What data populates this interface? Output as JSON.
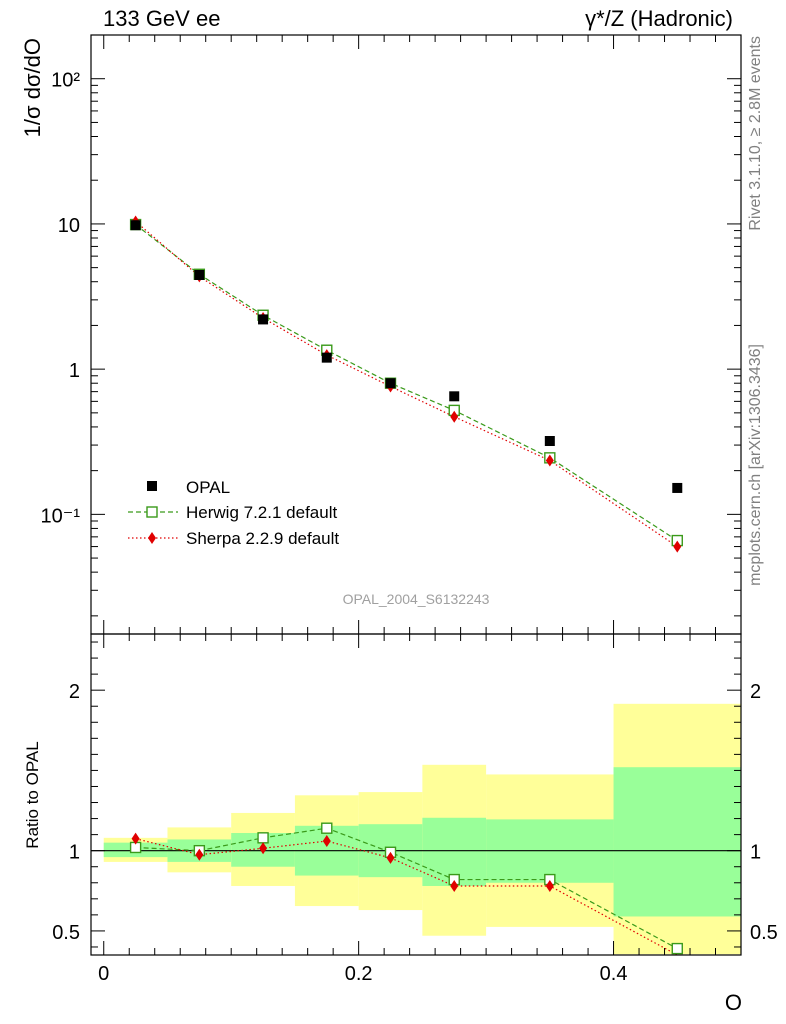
{
  "header": {
    "left": "133 GeV ee",
    "right": "γ*/Z (Hadronic)"
  },
  "side_labels": {
    "rivet": "Rivet 3.1.10, ≥ 2.8M events",
    "mcplots": "mcplots.cern.ch [arXiv:1306.3436]"
  },
  "analysis_id": "OPAL_2004_S6132243",
  "colors": {
    "data": "#000000",
    "herwig": "#3a9a1a",
    "sherpa": "#e00000",
    "band_outer": "#ffff99",
    "band_inner": "#99ff99"
  },
  "chart_data": [
    {
      "type": "scatter",
      "panel": "main",
      "ylabel": "1/σ dσ/dO",
      "yscale": "log",
      "ylim": [
        0.015,
        200
      ],
      "xlim": [
        -0.01,
        0.5
      ],
      "y_ticks": [
        "10⁻¹",
        "1",
        "10",
        "10²"
      ],
      "legend_position": "bottom-left",
      "x": [
        0.025,
        0.075,
        0.125,
        0.175,
        0.225,
        0.275,
        0.35,
        0.45
      ],
      "series": [
        {
          "name": "OPAL",
          "style": "markers",
          "marker": "filled-square",
          "values": [
            9.8,
            4.45,
            2.2,
            1.2,
            0.8,
            0.65,
            0.32,
            0.152
          ]
        },
        {
          "name": "Herwig 7.2.1 default",
          "style": "dashed",
          "marker": "open-square",
          "values": [
            9.9,
            4.5,
            2.35,
            1.35,
            0.8,
            0.52,
            0.245,
            0.066
          ]
        },
        {
          "name": "Sherpa 2.2.9 default",
          "style": "dotted",
          "marker": "diamond",
          "values": [
            10.4,
            4.35,
            2.25,
            1.25,
            0.76,
            0.47,
            0.235,
            0.06
          ]
        }
      ]
    },
    {
      "type": "line",
      "panel": "ratio",
      "ylabel": "Ratio to OPAL",
      "xlabel": "O",
      "ylim": [
        0.35,
        2.35
      ],
      "xlim": [
        -0.01,
        0.5
      ],
      "x_ticks": [
        "0",
        "0.2",
        "0.4"
      ],
      "y_ticks": [
        "0.5",
        "1",
        "2"
      ],
      "bins": [
        [
          0.0,
          0.05
        ],
        [
          0.05,
          0.1
        ],
        [
          0.1,
          0.15
        ],
        [
          0.15,
          0.2
        ],
        [
          0.2,
          0.25
        ],
        [
          0.25,
          0.3
        ],
        [
          0.3,
          0.4
        ],
        [
          0.4,
          0.5
        ]
      ],
      "band_inner": [
        [
          0.96,
          1.05
        ],
        [
          0.93,
          1.07
        ],
        [
          0.9,
          1.11
        ],
        [
          0.845,
          1.155
        ],
        [
          0.835,
          1.165
        ],
        [
          0.78,
          1.205
        ],
        [
          0.8,
          1.195
        ],
        [
          0.59,
          1.52
        ]
      ],
      "band_outer": [
        [
          0.93,
          1.08
        ],
        [
          0.865,
          1.145
        ],
        [
          0.78,
          1.235
        ],
        [
          0.655,
          1.345
        ],
        [
          0.63,
          1.365
        ],
        [
          0.47,
          1.535
        ],
        [
          0.525,
          1.475
        ],
        [
          0.355,
          1.915
        ]
      ],
      "x": [
        0.025,
        0.075,
        0.125,
        0.175,
        0.225,
        0.275,
        0.35,
        0.45
      ],
      "series": [
        {
          "name": "Herwig 7.2.1 default",
          "style": "dashed",
          "marker": "open-square",
          "values": [
            1.02,
            1.0,
            1.08,
            1.14,
            0.99,
            0.82,
            0.82,
            0.39
          ]
        },
        {
          "name": "Sherpa 2.2.9 default",
          "style": "dotted",
          "marker": "diamond",
          "values": [
            1.075,
            0.975,
            1.015,
            1.06,
            0.955,
            0.78,
            0.78,
            0.35
          ]
        }
      ]
    }
  ]
}
